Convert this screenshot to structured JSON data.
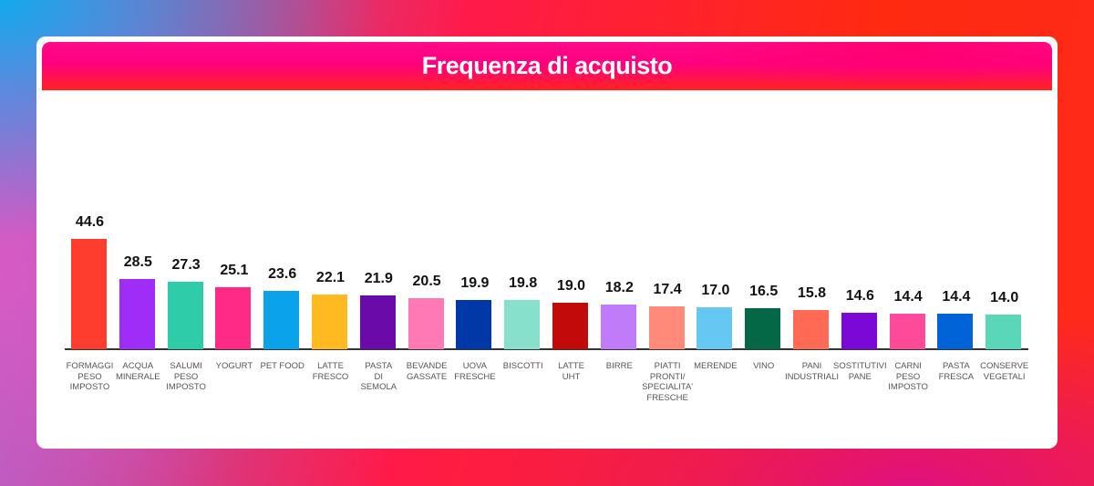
{
  "header": {
    "title": "Frequenza di acquisto"
  },
  "chart_data": {
    "type": "bar",
    "title": "Frequenza di acquisto",
    "xlabel": "",
    "ylabel": "",
    "grid": false,
    "legend": null,
    "ylim": [
      0,
      50
    ],
    "categories": [
      "FORMAGGI PESO IMPOSTO",
      "ACQUA MINERALE",
      "SALUMI PESO IMPOSTO",
      "YOGURT",
      "PET FOOD",
      "LATTE FRESCO",
      "PASTA DI SEMOLA",
      "BEVANDE GASSATE",
      "UOVA FRESCHE",
      "BISCOTTI",
      "LATTE UHT",
      "BIRRE",
      "PIATTI PRONTI/ SPECIALITA' FRESCHE",
      "MERENDE",
      "VINO",
      "PANI INDUSTRIALI",
      "SOSTITUTIVI PANE",
      "CARNI PESO IMPOSTO",
      "PASTA FRESCA",
      "CONSERVE VEGETALI"
    ],
    "values": [
      44.6,
      28.5,
      27.3,
      25.1,
      23.6,
      22.1,
      21.9,
      20.5,
      19.9,
      19.8,
      19.0,
      18.2,
      17.4,
      17.0,
      16.5,
      15.8,
      14.6,
      14.4,
      14.4,
      14.0
    ],
    "value_labels": [
      "44.6",
      "28.5",
      "27.3",
      "25.1",
      "23.6",
      "22.1",
      "21.9",
      "20.5",
      "19.9",
      "19.8",
      "19.0",
      "18.2",
      "17.4",
      "17.0",
      "16.5",
      "15.8",
      "14.6",
      "14.4",
      "14.4",
      "14.0"
    ],
    "tick_labels": [
      "FORMAGGI\nPESO\nIMPOSTO",
      "ACQUA\nMINERALE",
      "SALUMI\nPESO\nIMPOSTO",
      "YOGURT",
      "PET FOOD",
      "LATTE\nFRESCO",
      "PASTA\nDI\nSEMOLA",
      "BEVANDE\nGASSATE",
      "UOVA\nFRESCHE",
      "BISCOTTI",
      "LATTE\nUHT",
      "BIRRE",
      "PIATTI\nPRONTI/\nSPECIALITA'\nFRESCHE",
      "MERENDE",
      "VINO",
      "PANI\nINDUSTRIALI",
      "SOSTITUTIVI\nPANE",
      "CARNI\nPESO\nIMPOSTO",
      "PASTA\nFRESCA",
      "CONSERVE\nVEGETALI"
    ],
    "colors": [
      "#ff3d2e",
      "#a02cf8",
      "#2ecca8",
      "#ff2a86",
      "#0aa2e8",
      "#ffba22",
      "#6a0aa8",
      "#ff7ab4",
      "#0038a8",
      "#86e0cc",
      "#c20a0a",
      "#c07cf8",
      "#ff8a7a",
      "#66c8f2",
      "#046846",
      "#ff6a55",
      "#7c08d8",
      "#ff4a9a",
      "#0064d8",
      "#5ad6b8"
    ]
  }
}
